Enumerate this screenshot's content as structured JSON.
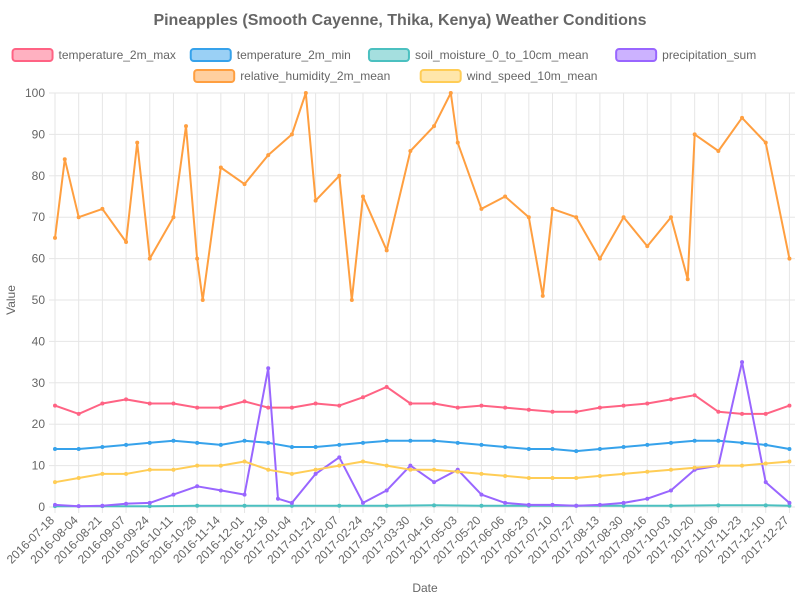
{
  "chart_data": {
    "type": "line",
    "title": "Pineapples (Smooth Cayenne, Thika, Kenya) Weather Conditions",
    "xlabel": "Date",
    "ylabel": "Value",
    "ylim": [
      0,
      100
    ],
    "yticks": [
      "0",
      "10",
      "20",
      "30",
      "40",
      "50",
      "60",
      "70",
      "80",
      "90",
      "100"
    ],
    "grid": true,
    "legend_position": "top",
    "x_start": "2016-07-18",
    "x_end": "2017-12-31",
    "xtick_labels": [
      "2016-07-18",
      "2016-08-04",
      "2016-08-21",
      "2016-09-07",
      "2016-09-24",
      "2016-10-11",
      "2016-10-28",
      "2016-11-14",
      "2016-12-01",
      "2016-12-18",
      "2017-01-04",
      "2017-01-21",
      "2017-02-07",
      "2017-02-24",
      "2017-03-13",
      "2017-03-30",
      "2017-04-16",
      "2017-05-03",
      "2017-05-20",
      "2017-06-06",
      "2017-06-23",
      "2017-07-10",
      "2017-07-27",
      "2017-08-13",
      "2017-08-30",
      "2017-09-16",
      "2017-10-03",
      "2017-10-20",
      "2017-11-06",
      "2017-11-23",
      "2017-12-10",
      "2017-12-27"
    ],
    "series": [
      {
        "name": "temperature_2m_max",
        "color": "#ff6384",
        "fill": "#ffb1c1",
        "points": [
          [
            "2016-07-18",
            24.5
          ],
          [
            "2016-08-04",
            22.5
          ],
          [
            "2016-08-21",
            25
          ],
          [
            "2016-09-07",
            26
          ],
          [
            "2016-09-24",
            25
          ],
          [
            "2016-10-11",
            25
          ],
          [
            "2016-10-28",
            24
          ],
          [
            "2016-11-14",
            24
          ],
          [
            "2016-12-01",
            25.5
          ],
          [
            "2016-12-18",
            24
          ],
          [
            "2017-01-04",
            24
          ],
          [
            "2017-01-21",
            25
          ],
          [
            "2017-02-07",
            24.5
          ],
          [
            "2017-02-24",
            26.5
          ],
          [
            "2017-03-13",
            29
          ],
          [
            "2017-03-30",
            25
          ],
          [
            "2017-04-16",
            25
          ],
          [
            "2017-05-03",
            24
          ],
          [
            "2017-05-20",
            24.5
          ],
          [
            "2017-06-06",
            24
          ],
          [
            "2017-06-23",
            23.5
          ],
          [
            "2017-07-10",
            23
          ],
          [
            "2017-07-27",
            23
          ],
          [
            "2017-08-13",
            24
          ],
          [
            "2017-08-30",
            24.5
          ],
          [
            "2017-09-16",
            25
          ],
          [
            "2017-10-03",
            26
          ],
          [
            "2017-10-20",
            27
          ],
          [
            "2017-11-06",
            23
          ],
          [
            "2017-11-23",
            22.5
          ],
          [
            "2017-12-10",
            22.5
          ],
          [
            "2017-12-27",
            24.5
          ]
        ]
      },
      {
        "name": "temperature_2m_min",
        "color": "#36a2eb",
        "fill": "#9ad0f5",
        "points": [
          [
            "2016-07-18",
            14
          ],
          [
            "2016-08-04",
            14
          ],
          [
            "2016-08-21",
            14.5
          ],
          [
            "2016-09-07",
            15
          ],
          [
            "2016-09-24",
            15.5
          ],
          [
            "2016-10-11",
            16
          ],
          [
            "2016-10-28",
            15.5
          ],
          [
            "2016-11-14",
            15
          ],
          [
            "2016-12-01",
            16
          ],
          [
            "2016-12-18",
            15.5
          ],
          [
            "2017-01-04",
            14.5
          ],
          [
            "2017-01-21",
            14.5
          ],
          [
            "2017-02-07",
            15
          ],
          [
            "2017-02-24",
            15.5
          ],
          [
            "2017-03-13",
            16
          ],
          [
            "2017-03-30",
            16
          ],
          [
            "2017-04-16",
            16
          ],
          [
            "2017-05-03",
            15.5
          ],
          [
            "2017-05-20",
            15
          ],
          [
            "2017-06-06",
            14.5
          ],
          [
            "2017-06-23",
            14
          ],
          [
            "2017-07-10",
            14
          ],
          [
            "2017-07-27",
            13.5
          ],
          [
            "2017-08-13",
            14
          ],
          [
            "2017-08-30",
            14.5
          ],
          [
            "2017-09-16",
            15
          ],
          [
            "2017-10-03",
            15.5
          ],
          [
            "2017-10-20",
            16
          ],
          [
            "2017-11-06",
            16
          ],
          [
            "2017-11-23",
            15.5
          ],
          [
            "2017-12-10",
            15
          ],
          [
            "2017-12-27",
            14
          ]
        ]
      },
      {
        "name": "soil_moisture_0_to_10cm_mean",
        "color": "#4bc0c0",
        "fill": "#a5dfdf",
        "points": [
          [
            "2016-07-18",
            0.2
          ],
          [
            "2016-08-21",
            0.2
          ],
          [
            "2016-09-24",
            0.2
          ],
          [
            "2016-10-28",
            0.3
          ],
          [
            "2016-12-01",
            0.3
          ],
          [
            "2017-01-04",
            0.3
          ],
          [
            "2017-02-07",
            0.3
          ],
          [
            "2017-03-13",
            0.3
          ],
          [
            "2017-04-16",
            0.4
          ],
          [
            "2017-05-20",
            0.3
          ],
          [
            "2017-06-23",
            0.3
          ],
          [
            "2017-07-27",
            0.3
          ],
          [
            "2017-08-30",
            0.3
          ],
          [
            "2017-10-03",
            0.3
          ],
          [
            "2017-11-06",
            0.4
          ],
          [
            "2017-12-10",
            0.4
          ],
          [
            "2017-12-27",
            0.3
          ]
        ]
      },
      {
        "name": "precipitation_sum",
        "color": "#9966ff",
        "fill": "#ccb2ff",
        "points": [
          [
            "2016-07-18",
            0.5
          ],
          [
            "2016-08-04",
            0.2
          ],
          [
            "2016-08-21",
            0.3
          ],
          [
            "2016-09-07",
            0.8
          ],
          [
            "2016-09-24",
            1
          ],
          [
            "2016-10-11",
            3
          ],
          [
            "2016-10-28",
            5
          ],
          [
            "2016-11-14",
            4
          ],
          [
            "2016-12-01",
            3
          ],
          [
            "2016-12-18",
            33.5
          ],
          [
            "2016-12-25",
            2
          ],
          [
            "2017-01-04",
            1
          ],
          [
            "2017-01-21",
            8
          ],
          [
            "2017-02-07",
            12
          ],
          [
            "2017-02-24",
            1
          ],
          [
            "2017-03-13",
            4
          ],
          [
            "2017-03-30",
            10
          ],
          [
            "2017-04-16",
            6
          ],
          [
            "2017-05-03",
            9
          ],
          [
            "2017-05-20",
            3
          ],
          [
            "2017-06-06",
            1
          ],
          [
            "2017-06-23",
            0.5
          ],
          [
            "2017-07-10",
            0.5
          ],
          [
            "2017-07-27",
            0.3
          ],
          [
            "2017-08-13",
            0.5
          ],
          [
            "2017-08-30",
            1
          ],
          [
            "2017-09-16",
            2
          ],
          [
            "2017-10-03",
            4
          ],
          [
            "2017-10-20",
            9
          ],
          [
            "2017-11-06",
            10
          ],
          [
            "2017-11-23",
            35
          ],
          [
            "2017-12-10",
            6
          ],
          [
            "2017-12-27",
            1
          ]
        ]
      },
      {
        "name": "relative_humidity_2m_mean",
        "color": "#ff9f40",
        "fill": "#ffcf9f",
        "points": [
          [
            "2016-07-18",
            65
          ],
          [
            "2016-07-25",
            84
          ],
          [
            "2016-08-04",
            70
          ],
          [
            "2016-08-21",
            72
          ],
          [
            "2016-09-07",
            64
          ],
          [
            "2016-09-15",
            88
          ],
          [
            "2016-09-24",
            60
          ],
          [
            "2016-10-11",
            70
          ],
          [
            "2016-10-20",
            92
          ],
          [
            "2016-10-28",
            60
          ],
          [
            "2016-11-01",
            50
          ],
          [
            "2016-11-14",
            82
          ],
          [
            "2016-12-01",
            78
          ],
          [
            "2016-12-18",
            85
          ],
          [
            "2017-01-04",
            90
          ],
          [
            "2017-01-14",
            100
          ],
          [
            "2017-01-21",
            74
          ],
          [
            "2017-02-07",
            80
          ],
          [
            "2017-02-16",
            50
          ],
          [
            "2017-02-24",
            75
          ],
          [
            "2017-03-13",
            62
          ],
          [
            "2017-03-30",
            86
          ],
          [
            "2017-04-16",
            92
          ],
          [
            "2017-04-28",
            100
          ],
          [
            "2017-05-03",
            88
          ],
          [
            "2017-05-20",
            72
          ],
          [
            "2017-06-06",
            75
          ],
          [
            "2017-06-23",
            70
          ],
          [
            "2017-07-03",
            51
          ],
          [
            "2017-07-10",
            72
          ],
          [
            "2017-07-27",
            70
          ],
          [
            "2017-08-13",
            60
          ],
          [
            "2017-08-30",
            70
          ],
          [
            "2017-09-16",
            63
          ],
          [
            "2017-10-03",
            70
          ],
          [
            "2017-10-15",
            55
          ],
          [
            "2017-10-20",
            90
          ],
          [
            "2017-11-06",
            86
          ],
          [
            "2017-11-23",
            94
          ],
          [
            "2017-12-10",
            88
          ],
          [
            "2017-12-27",
            60
          ]
        ]
      },
      {
        "name": "wind_speed_10m_mean",
        "color": "#ffcd56",
        "fill": "#ffe6aa",
        "points": [
          [
            "2016-07-18",
            6
          ],
          [
            "2016-08-04",
            7
          ],
          [
            "2016-08-21",
            8
          ],
          [
            "2016-09-07",
            8
          ],
          [
            "2016-09-24",
            9
          ],
          [
            "2016-10-11",
            9
          ],
          [
            "2016-10-28",
            10
          ],
          [
            "2016-11-14",
            10
          ],
          [
            "2016-12-01",
            11
          ],
          [
            "2016-12-18",
            9
          ],
          [
            "2017-01-04",
            8
          ],
          [
            "2017-01-21",
            9
          ],
          [
            "2017-02-07",
            10
          ],
          [
            "2017-02-24",
            11
          ],
          [
            "2017-03-13",
            10
          ],
          [
            "2017-03-30",
            9
          ],
          [
            "2017-04-16",
            9
          ],
          [
            "2017-05-03",
            8.5
          ],
          [
            "2017-05-20",
            8
          ],
          [
            "2017-06-06",
            7.5
          ],
          [
            "2017-06-23",
            7
          ],
          [
            "2017-07-10",
            7
          ],
          [
            "2017-07-27",
            7
          ],
          [
            "2017-08-13",
            7.5
          ],
          [
            "2017-08-30",
            8
          ],
          [
            "2017-09-16",
            8.5
          ],
          [
            "2017-10-03",
            9
          ],
          [
            "2017-10-20",
            9.5
          ],
          [
            "2017-11-06",
            10
          ],
          [
            "2017-11-23",
            10
          ],
          [
            "2017-12-10",
            10.5
          ],
          [
            "2017-12-27",
            11
          ]
        ]
      }
    ]
  }
}
